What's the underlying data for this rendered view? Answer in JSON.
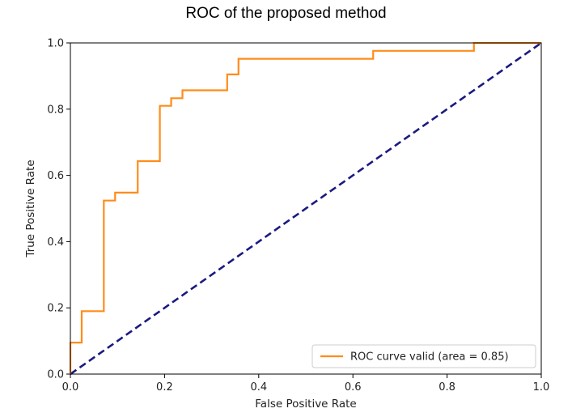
{
  "chart_data": {
    "type": "line",
    "title": "ROC of the proposed method",
    "xlabel": "False Positive Rate",
    "ylabel": "True Positive Rate",
    "xlim": [
      0.0,
      1.0
    ],
    "ylim": [
      0.0,
      1.0
    ],
    "xticks": [
      "0.0",
      "0.2",
      "0.4",
      "0.6",
      "0.8",
      "1.0"
    ],
    "yticks": [
      "0.0",
      "0.2",
      "0.4",
      "0.6",
      "0.8",
      "1.0"
    ],
    "grid": false,
    "legend_position": "lower-right",
    "series": [
      {
        "name": "ROC curve valid (area = 0.85)",
        "color": "#ff8c1a",
        "style": "solid",
        "step": true,
        "x": [
          0.0,
          0.0,
          0.024,
          0.024,
          0.071,
          0.071,
          0.095,
          0.095,
          0.143,
          0.143,
          0.19,
          0.19,
          0.214,
          0.214,
          0.238,
          0.238,
          0.333,
          0.333,
          0.357,
          0.357,
          0.643,
          0.643,
          0.857,
          0.857,
          1.0
        ],
        "y": [
          0.0,
          0.095,
          0.095,
          0.19,
          0.19,
          0.524,
          0.524,
          0.548,
          0.548,
          0.643,
          0.643,
          0.81,
          0.81,
          0.833,
          0.833,
          0.857,
          0.857,
          0.905,
          0.905,
          0.952,
          0.952,
          0.976,
          0.976,
          1.0,
          1.0
        ]
      },
      {
        "name": "",
        "color": "#1a1a80",
        "style": "dashed",
        "x": [
          0.0,
          1.0
        ],
        "y": [
          0.0,
          1.0
        ]
      }
    ]
  }
}
